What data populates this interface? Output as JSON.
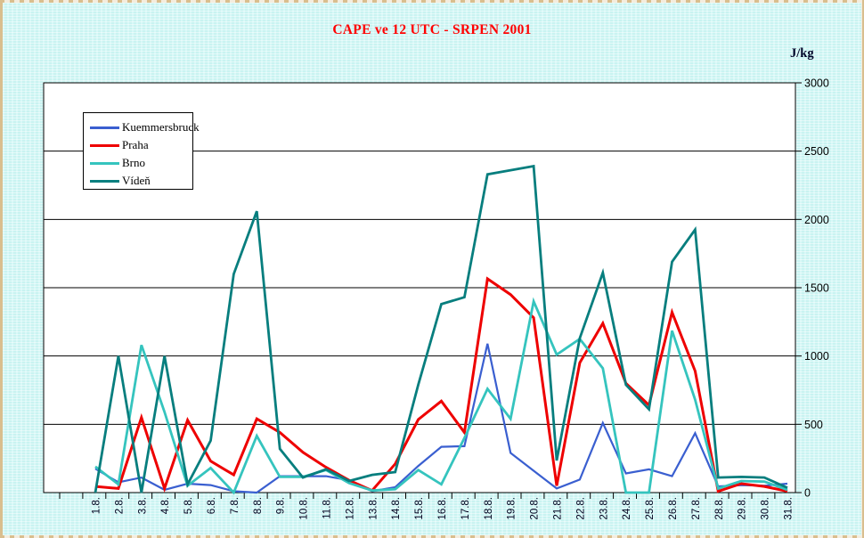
{
  "window": {
    "background_color": "#c9f3f1",
    "border_color": "#d9be8e",
    "plot_background": "#ffffff",
    "axis_color": "#000000"
  },
  "chart_data": {
    "type": "line",
    "title": "CAPE ve 12 UTC - SRPEN 2001",
    "title_color": "#ff0000",
    "ylabel": "J/kg",
    "xlabel": "",
    "ylim": [
      0,
      3000
    ],
    "ytick_step": 500,
    "ytick_labels": [
      "0",
      "500",
      "1000",
      "1500",
      "2000",
      "2500",
      "3000"
    ],
    "value_axis_side": "right",
    "grid": "horizontal",
    "legend_position": "top-left-inside",
    "categories": [
      "1.8.",
      "2.8.",
      "3.8.",
      "4.8.",
      "5.8.",
      "6.8.",
      "7.8.",
      "8.8.",
      "9.8.",
      "10.8.",
      "11.8.",
      "12.8.",
      "13.8.",
      "14.8.",
      "15.8.",
      "16.8.",
      "17.8.",
      "18.8.",
      "19.8.",
      "20.8.",
      "21.8.",
      "22.8.",
      "23.8.",
      "24.8.",
      "25.8.",
      "26.8.",
      "27.8.",
      "28.8.",
      "29.8.",
      "30.8.",
      "31.8."
    ],
    "series": [
      {
        "name": "Kuemmersbruck",
        "color": "#3a5fd0",
        "values": [
          175,
          75,
          110,
          20,
          65,
          55,
          10,
          0,
          120,
          120,
          120,
          90,
          10,
          40,
          195,
          335,
          340,
          1090,
          290,
          160,
          30,
          95,
          510,
          140,
          170,
          120,
          435,
          45,
          55,
          50,
          65
        ]
      },
      {
        "name": "Praha",
        "color": "#ee0000",
        "values": [
          45,
          30,
          550,
          30,
          530,
          230,
          130,
          540,
          440,
          295,
          185,
          90,
          15,
          210,
          535,
          670,
          440,
          1565,
          1450,
          1280,
          50,
          950,
          1240,
          800,
          640,
          1320,
          890,
          10,
          65,
          45,
          10
        ]
      },
      {
        "name": "Brno",
        "color": "#35c4be",
        "values": [
          190,
          60,
          1080,
          590,
          50,
          180,
          0,
          415,
          115,
          115,
          165,
          70,
          15,
          25,
          165,
          60,
          400,
          760,
          540,
          1400,
          1010,
          1125,
          910,
          0,
          0,
          1185,
          680,
          30,
          85,
          80,
          20
        ]
      },
      {
        "name": "Vídeň",
        "color": "#077e7e",
        "values": [
          0,
          1000,
          0,
          1000,
          60,
          380,
          1600,
          2060,
          320,
          110,
          170,
          85,
          130,
          150,
          790,
          1380,
          1430,
          2330,
          2360,
          2390,
          235,
          1130,
          1610,
          790,
          610,
          1690,
          1925,
          110,
          115,
          110,
          35
        ]
      }
    ]
  }
}
